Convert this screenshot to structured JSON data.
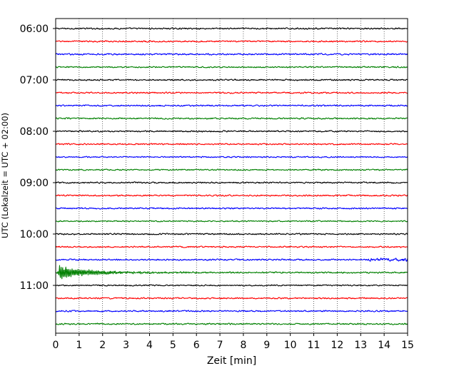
{
  "chart_data": {
    "type": "line",
    "title": "",
    "xlabel": "Zeit  [min]",
    "ylabel": "UTC (Lokalzeit = UTC + 02:00)",
    "xlim": [
      0,
      15
    ],
    "x_ticks": [
      0,
      1,
      2,
      3,
      4,
      5,
      6,
      7,
      8,
      9,
      10,
      11,
      12,
      13,
      14,
      15
    ],
    "x_tick_labels": [
      "0",
      "1",
      "2",
      "3",
      "4",
      "5",
      "6",
      "7",
      "8",
      "9",
      "10",
      "11",
      "12",
      "13",
      "14",
      "15"
    ],
    "y_tick_labels": [
      "06:00",
      "07:00",
      "08:00",
      "09:00",
      "10:00",
      "11:00"
    ],
    "grid": "vertical dotted at each minute",
    "colors": [
      "#000000",
      "#ff0000",
      "#0000ff",
      "#008000"
    ],
    "traces": [
      {
        "start": "06:00",
        "color": "#000000",
        "amplitude": 1.0
      },
      {
        "start": "06:15",
        "color": "#ff0000",
        "amplitude": 1.0
      },
      {
        "start": "06:30",
        "color": "#0000ff",
        "amplitude": 1.1
      },
      {
        "start": "06:45",
        "color": "#008000",
        "amplitude": 1.0
      },
      {
        "start": "07:00",
        "color": "#000000",
        "amplitude": 1.0
      },
      {
        "start": "07:15",
        "color": "#ff0000",
        "amplitude": 1.0
      },
      {
        "start": "07:30",
        "color": "#0000ff",
        "amplitude": 1.0
      },
      {
        "start": "07:45",
        "color": "#008000",
        "amplitude": 1.0
      },
      {
        "start": "08:00",
        "color": "#000000",
        "amplitude": 1.0
      },
      {
        "start": "08:15",
        "color": "#ff0000",
        "amplitude": 1.0
      },
      {
        "start": "08:30",
        "color": "#0000ff",
        "amplitude": 0.9
      },
      {
        "start": "08:45",
        "color": "#008000",
        "amplitude": 0.9
      },
      {
        "start": "09:00",
        "color": "#000000",
        "amplitude": 1.0
      },
      {
        "start": "09:15",
        "color": "#ff0000",
        "amplitude": 1.0
      },
      {
        "start": "09:30",
        "color": "#0000ff",
        "amplitude": 1.0
      },
      {
        "start": "09:45",
        "color": "#008000",
        "amplitude": 0.9
      },
      {
        "start": "10:00",
        "color": "#000000",
        "amplitude": 1.0
      },
      {
        "start": "10:15",
        "color": "#ff0000",
        "amplitude": 1.0
      },
      {
        "start": "10:30",
        "color": "#0000ff",
        "amplitude": 1.0,
        "event": {
          "from": 13.2,
          "to": 15,
          "gain": 2.2
        }
      },
      {
        "start": "10:45",
        "color": "#008000",
        "amplitude": 1.0,
        "quake": {
          "at": 0.15,
          "peak": 9
        }
      },
      {
        "start": "11:00",
        "color": "#000000",
        "amplitude": 0.9
      },
      {
        "start": "11:15",
        "color": "#ff0000",
        "amplitude": 1.0
      },
      {
        "start": "11:30",
        "color": "#0000ff",
        "amplitude": 1.0
      },
      {
        "start": "11:45",
        "color": "#008000",
        "amplitude": 1.0
      }
    ]
  }
}
